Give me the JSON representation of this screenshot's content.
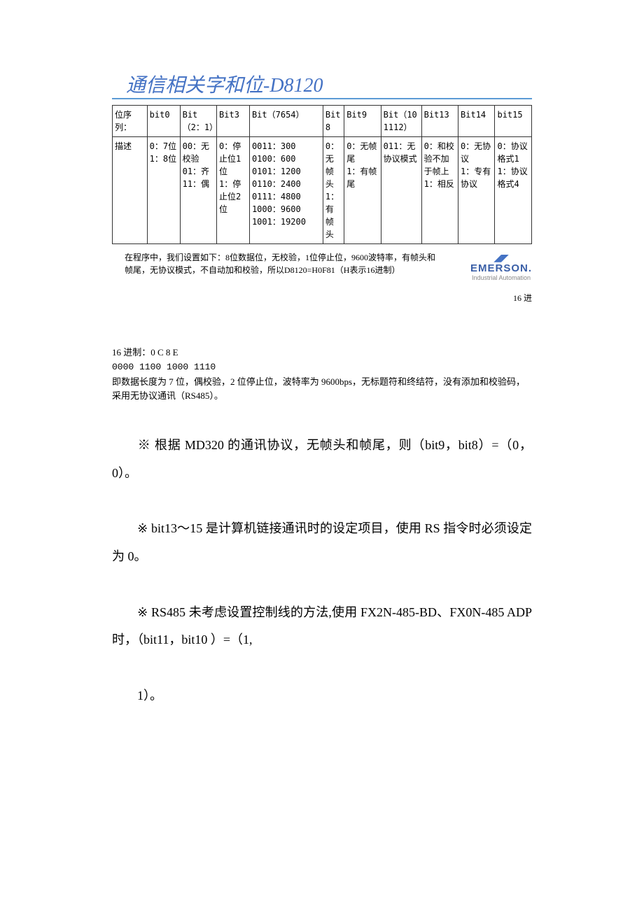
{
  "title": "通信相关字和位-D8120",
  "table": {
    "header": [
      "位序列：",
      "bit0",
      "Bit（2：1）",
      "Bit3",
      "Bit（7654）",
      "Bit8",
      "Bit9",
      "Bit（101112）",
      "Bit13",
      "Bit14",
      "bit15"
    ],
    "rowLabel": "描述",
    "cells": [
      "0：7位\n1：8位",
      "00：无校验\n01：齐\n11：偶",
      "0：停止位1位\n1：停止位2位",
      "0011：300\n0100：600\n0101：1200\n0110：2400\n0111：4800\n1000：9600\n1001：19200",
      "0：无帧头\n1：有帧头",
      "0：无帧尾\n1：有帧尾",
      "011：无协议模式",
      "0：和校验不加于帧上\n1：相反",
      "0：无协议\n1：专有协议",
      "0：协议格式1\n1：协议格式4"
    ]
  },
  "caption": "在程序中，我们设置如下：8位数据位，无校验，1位停止位，9600波特率，有帧头和帧尾，无协议模式，不自动加和校验，所以D8120=H0F81（H表示16进制）",
  "logo": {
    "brand": "EMERSON.",
    "subtitle": "Industrial Automation"
  },
  "rightNote": "16 进",
  "lower": {
    "l1": "16 进制：0 C 8 E",
    "l2": "0000 1100 1000 1110",
    "l3": "即数据长度为 7 位，偶校验，2 位停止位，波特率为 9600bps，无标题符和终结符，没有添加和校验码，采用无协议通讯（RS485）。"
  },
  "paras": {
    "p1": "※ 根据 MD320 的通讯协议，无帧头和帧尾，则（bit9，bit8）=（0，0）。",
    "p2": "※ bit13～15 是计算机链接通讯时的设定项目，使用 RS 指令时必须设定为 0。",
    "p3": "※ RS485 未考虑设置控制线的方法,使用 FX2N-485-BD、FX0N-485 ADP 时，（bit11，bit10 ）=（1,",
    "p4": "1）。"
  },
  "colWidths": [
    "36px",
    "34px",
    "38px",
    "34px",
    "76px",
    "22px",
    "38px",
    "42px",
    "38px",
    "38px",
    "38px"
  ]
}
